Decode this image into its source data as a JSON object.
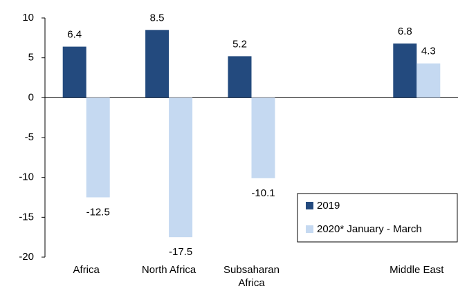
{
  "chart_data": {
    "type": "bar",
    "categories": [
      "Africa",
      "North Africa",
      "Subsaharan Africa",
      null,
      "Middle East"
    ],
    "series": [
      {
        "name": "2019",
        "color": "#234a7e",
        "values": [
          6.4,
          8.5,
          5.2,
          null,
          6.8
        ]
      },
      {
        "name": "2020* January - March",
        "color": "#c5d9f1",
        "values": [
          -12.5,
          -17.5,
          -10.1,
          null,
          4.3
        ]
      }
    ],
    "ylim": [
      -20,
      10
    ],
    "yticks": [
      -20,
      -15,
      -10,
      -5,
      0,
      5,
      10
    ],
    "grid": false,
    "legend": "lower right"
  }
}
